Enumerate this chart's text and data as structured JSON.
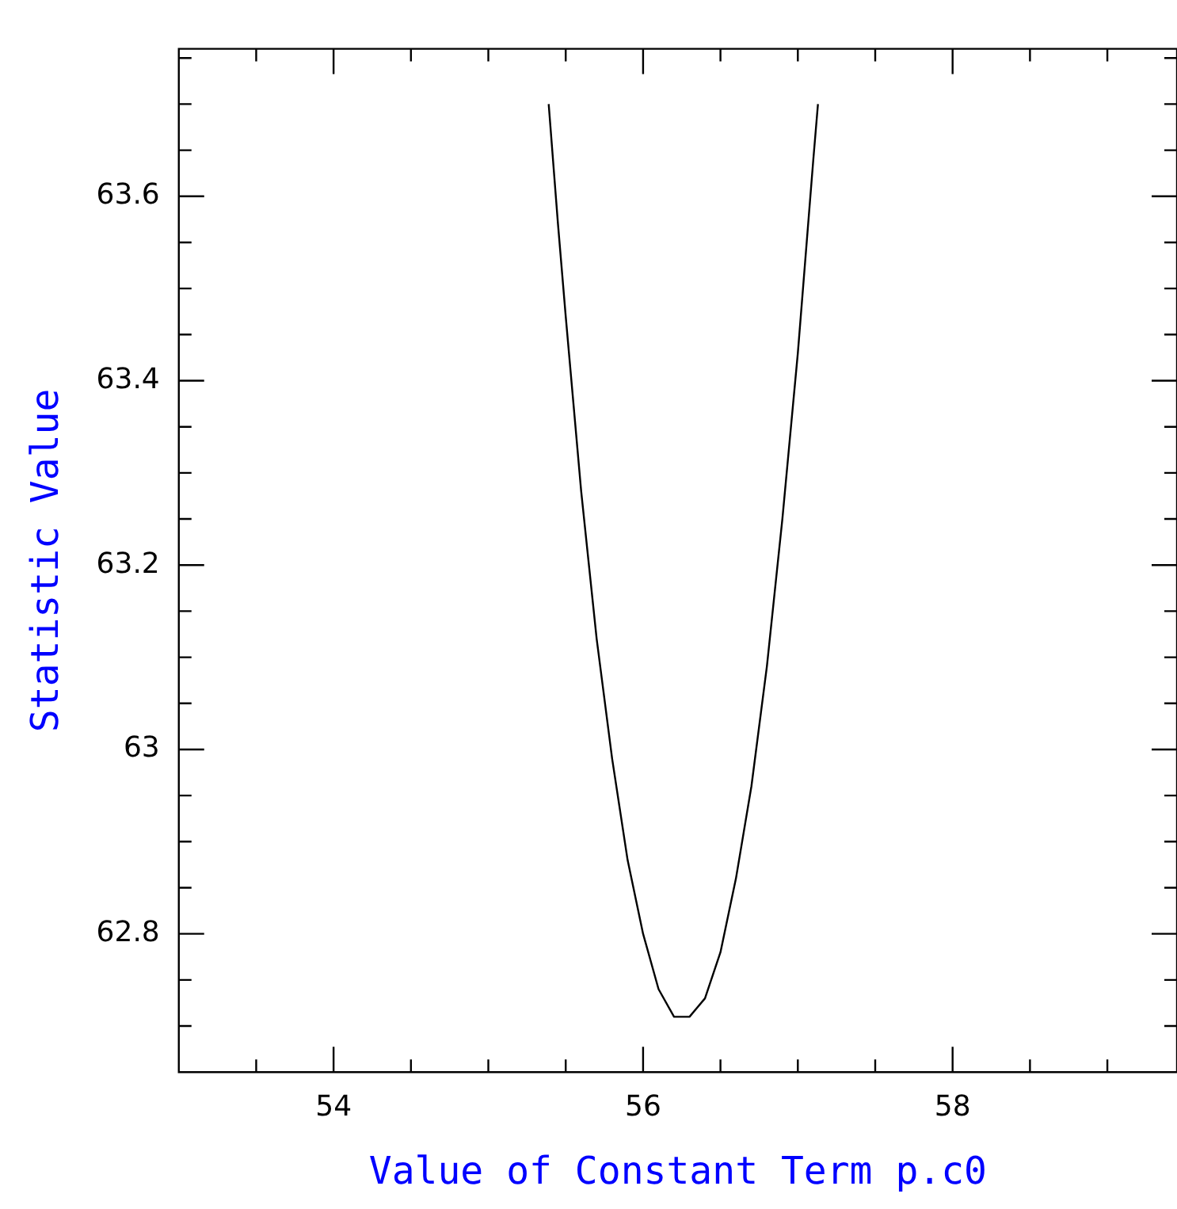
{
  "chart_data": {
    "type": "line",
    "xlabel": "Value of Constant Term p.c0",
    "ylabel": "Statistic Value",
    "x": [
      55.39,
      55.45,
      55.5,
      55.6,
      55.7,
      55.8,
      55.9,
      56.0,
      56.1,
      56.2,
      56.26,
      56.3,
      56.4,
      56.5,
      56.6,
      56.7,
      56.8,
      56.9,
      57.0,
      57.1,
      57.13
    ],
    "series": [
      {
        "color": "#000000",
        "values": [
          63.7,
          63.57,
          63.47,
          63.28,
          63.12,
          62.99,
          62.88,
          62.8,
          62.74,
          62.71,
          62.71,
          62.71,
          62.73,
          62.78,
          62.86,
          62.96,
          63.09,
          63.25,
          63.43,
          63.64,
          63.7
        ]
      }
    ],
    "xlim": [
      53,
      59.45
    ],
    "ylim": [
      62.65,
      63.76
    ],
    "xticks": [
      {
        "value": 53.5,
        "label": null
      },
      54,
      {
        "value": 54.5,
        "label": null
      },
      {
        "value": 55,
        "label": null
      },
      {
        "value": 55.5,
        "label": null
      },
      56,
      {
        "value": 56.5,
        "label": null
      },
      {
        "value": 57,
        "label": null
      },
      {
        "value": 57.5,
        "label": null
      },
      58,
      {
        "value": 58.5,
        "label": null
      },
      {
        "value": 59,
        "label": null
      }
    ],
    "yticks": [
      {
        "value": 62.7,
        "label": null
      },
      {
        "value": 62.75,
        "label": null
      },
      62.8,
      {
        "value": 62.85,
        "label": null
      },
      {
        "value": 62.9,
        "label": null
      },
      {
        "value": 62.95,
        "label": null
      },
      63,
      {
        "value": 63.05,
        "label": null
      },
      {
        "value": 63.1,
        "label": null
      },
      {
        "value": 63.15,
        "label": null
      },
      63.2,
      {
        "value": 63.25,
        "label": null
      },
      {
        "value": 63.3,
        "label": null
      },
      {
        "value": 63.35,
        "label": null
      },
      63.4,
      {
        "value": 63.45,
        "label": null
      },
      {
        "value": 63.5,
        "label": null
      },
      {
        "value": 63.55,
        "label": null
      },
      63.6,
      {
        "value": 63.65,
        "label": null
      },
      {
        "value": 63.7,
        "label": null
      },
      {
        "value": 63.75,
        "label": null
      }
    ],
    "grid": false,
    "legend": false,
    "marker": "none",
    "line_style": "solid"
  }
}
